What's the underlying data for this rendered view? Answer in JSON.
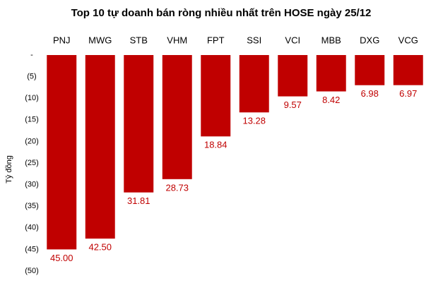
{
  "chart_data": {
    "type": "bar",
    "title": "Top 10 tự doanh bán ròng nhiều nhất trên HOSE ngày 25/12",
    "y_label": "Tỷ đồng",
    "categories": [
      "PNJ",
      "MWG",
      "STB",
      "VHM",
      "FPT",
      "SSI",
      "VCI",
      "MBB",
      "DXG",
      "VCG"
    ],
    "values": [
      -45.0,
      -42.5,
      -31.81,
      -28.73,
      -18.84,
      -13.28,
      -9.57,
      -8.42,
      -6.98,
      -6.97
    ],
    "value_labels": [
      "45.00",
      "42.50",
      "31.81",
      "28.73",
      "18.84",
      "13.28",
      "9.57",
      "8.42",
      "6.98",
      "6.97"
    ],
    "color": "#c00000",
    "ylim": [
      -50,
      0
    ],
    "yticks": [
      {
        "value": 0,
        "label": "-"
      },
      {
        "value": -5,
        "label": "(5)"
      },
      {
        "value": -10,
        "label": "(10)"
      },
      {
        "value": -15,
        "label": "(15)"
      },
      {
        "value": -20,
        "label": "(20)"
      },
      {
        "value": -25,
        "label": "(25)"
      },
      {
        "value": -30,
        "label": "(30)"
      },
      {
        "value": -35,
        "label": "(35)"
      },
      {
        "value": -40,
        "label": "(40)"
      },
      {
        "value": -45,
        "label": "(45)"
      },
      {
        "value": -50,
        "label": "(50)"
      }
    ],
    "grid": false
  }
}
